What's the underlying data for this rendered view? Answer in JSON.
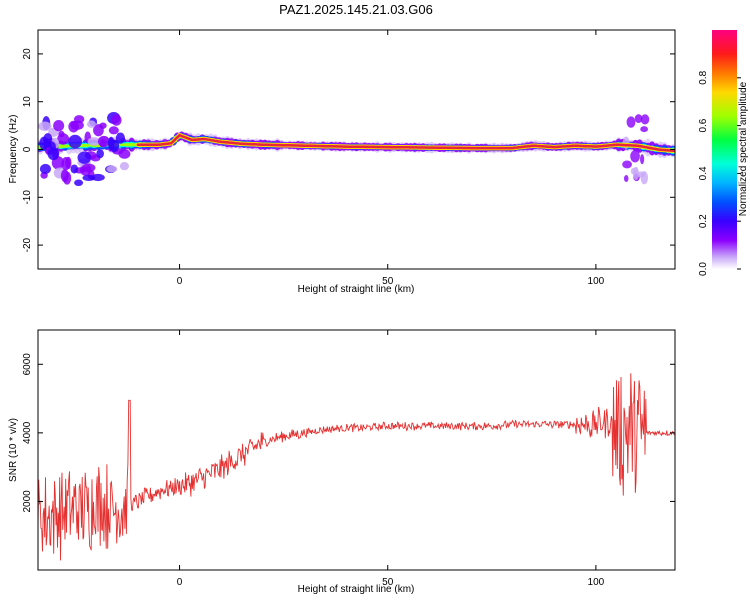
{
  "title": "PAZ1.2025.145.21.03.G06",
  "colors": {
    "snr_line": "#e53030",
    "ridge": "#e8243c",
    "colormap": [
      "#ffffff",
      "#c8a8f8",
      "#8b00ff",
      "#3800ff",
      "#0050ff",
      "#00b4ff",
      "#00ffd8",
      "#00ff40",
      "#a0ff00",
      "#ffd800",
      "#ff7800",
      "#ff1a1a",
      "#ff0080"
    ]
  },
  "chart_data": [
    {
      "type": "heatmap",
      "xlabel": "Height of straight line (km)",
      "ylabel": "Frequency (Hz)",
      "xlim": [
        -34,
        119
      ],
      "ylim": [
        -25,
        25
      ],
      "xticks": [
        0,
        50,
        100
      ],
      "yticks": [
        -20,
        -10,
        0,
        10,
        20
      ],
      "colorbar": {
        "label": "Normalized spectral amplitude",
        "range": [
          0,
          1
        ],
        "ticks": [
          0.0,
          0.2,
          0.4,
          0.6,
          0.8
        ]
      },
      "ridge_frequency": {
        "x": [
          -34,
          -25,
          -15,
          -10,
          -5,
          -2,
          0,
          3,
          6,
          10,
          15,
          20,
          30,
          40,
          50,
          60,
          70,
          80,
          85,
          90,
          95,
          100,
          105,
          110,
          115,
          119
        ],
        "y": [
          0.5,
          0.8,
          1.0,
          1.0,
          1.0,
          1.3,
          3.0,
          2.0,
          2.2,
          1.6,
          1.2,
          1.0,
          0.8,
          0.6,
          0.5,
          0.4,
          0.3,
          0.3,
          0.8,
          0.5,
          0.8,
          0.6,
          1.0,
          0.8,
          0.0,
          -0.3
        ]
      }
    },
    {
      "type": "line",
      "xlabel": "Height of straight line (km)",
      "ylabel": "SNR (10 * v/v)",
      "xlim": [
        -34,
        119
      ],
      "ylim": [
        0,
        7000
      ],
      "xticks": [
        0,
        50,
        100
      ],
      "yticks": [
        2000,
        4000,
        6000
      ],
      "series": [
        {
          "x": [
            -34,
            -30,
            -25,
            -20,
            -15,
            -12,
            -10,
            -5,
            0,
            5,
            10,
            15,
            20,
            25,
            30,
            35,
            40,
            45,
            50,
            55,
            60,
            65,
            70,
            75,
            80,
            85,
            90,
            95,
            100,
            103,
            106,
            109,
            111,
            113,
            116,
            119
          ],
          "y": [
            1500,
            1600,
            1800,
            1900,
            1800,
            1900,
            2000,
            2300,
            2450,
            2650,
            2950,
            3350,
            3750,
            3900,
            4000,
            4100,
            4150,
            4150,
            4200,
            4200,
            4200,
            4200,
            4200,
            4200,
            4250,
            4250,
            4250,
            4250,
            4250,
            4300,
            4100,
            4100,
            4000,
            4000,
            4000,
            4000
          ]
        }
      ]
    }
  ]
}
